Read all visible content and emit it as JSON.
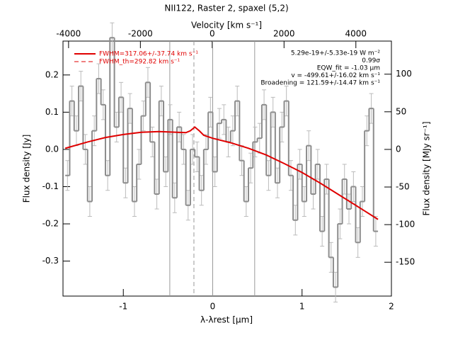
{
  "chart_data": {
    "type": "step",
    "title": "NII122, Raster 2, spaxel (5,2)",
    "xlabel": "λ-λrest [μm]",
    "ylabel": "Flux density [Jy]",
    "x2label": "Velocity [km s⁻¹]",
    "y2label": "Flux density [MJy sr⁻¹]",
    "xlim": [
      -1.675,
      2.0
    ],
    "xticks": [
      -1,
      0,
      1,
      2
    ],
    "ylim": [
      -0.394,
      0.291
    ],
    "yticks": [
      0.2,
      0.1,
      {
        "value": 0,
        "label": "0.0"
      },
      -0.1,
      -0.2,
      -0.3
    ],
    "x2lim": [
      -4155,
      4990
    ],
    "x2ticks": [
      -4000,
      -2000,
      0,
      2000,
      4000
    ],
    "y2lim": [
      -195,
      144
    ],
    "y2ticks": [
      100,
      50,
      0,
      -50,
      -100,
      -150
    ],
    "color": "#8c8c8c",
    "x": [
      -1.625,
      -1.575,
      -1.525,
      -1.475,
      -1.425,
      -1.375,
      -1.325,
      -1.275,
      -1.225,
      -1.175,
      -1.125,
      -1.075,
      -1.025,
      -0.975,
      -0.925,
      -0.875,
      -0.825,
      -0.775,
      -0.725,
      -0.675,
      -0.625,
      -0.575,
      -0.525,
      -0.475,
      -0.425,
      -0.375,
      -0.325,
      -0.275,
      -0.225,
      -0.175,
      -0.125,
      -0.075,
      -0.025,
      0.025,
      0.075,
      0.125,
      0.175,
      0.225,
      0.275,
      0.325,
      0.375,
      0.425,
      0.475,
      0.525,
      0.575,
      0.625,
      0.675,
      0.725,
      0.775,
      0.825,
      0.875,
      0.925,
      0.975,
      1.025,
      1.075,
      1.125,
      1.175,
      1.225,
      1.275,
      1.325,
      1.375,
      1.425,
      1.475,
      1.525,
      1.575,
      1.625,
      1.675,
      1.725,
      1.775,
      1.825
    ],
    "values": [
      -0.07,
      0.13,
      0.05,
      0.17,
      0.0,
      -0.14,
      0.05,
      0.19,
      0.12,
      -0.07,
      0.3,
      0.06,
      0.14,
      -0.09,
      0.11,
      -0.14,
      -0.04,
      0.09,
      0.18,
      0.02,
      -0.12,
      0.13,
      -0.06,
      0.08,
      -0.13,
      0.06,
      0.0,
      -0.15,
      0.0,
      -0.02,
      -0.11,
      0.0,
      0.1,
      -0.06,
      0.07,
      0.08,
      0.02,
      0.05,
      0.13,
      -0.03,
      -0.14,
      -0.05,
      0.02,
      0.03,
      0.12,
      -0.07,
      0.1,
      -0.09,
      0.06,
      0.13,
      -0.07,
      -0.19,
      -0.04,
      -0.14,
      0.01,
      -0.12,
      -0.04,
      -0.22,
      -0.08,
      -0.29,
      -0.37,
      -0.2,
      -0.08,
      -0.16,
      -0.1,
      -0.25,
      -0.14,
      0.05,
      0.11,
      -0.22
    ],
    "error": [
      0.04,
      0.04,
      0.04,
      0.04,
      0.04,
      0.04,
      0.04,
      0.04,
      0.04,
      0.04,
      0.04,
      0.04,
      0.04,
      0.04,
      0.04,
      0.04,
      0.04,
      0.04,
      0.04,
      0.04,
      0.04,
      0.04,
      0.04,
      0.04,
      0.04,
      0.04,
      0.04,
      0.04,
      0.04,
      0.04,
      0.04,
      0.04,
      0.04,
      0.04,
      0.04,
      0.04,
      0.04,
      0.04,
      0.04,
      0.04,
      0.04,
      0.04,
      0.04,
      0.04,
      0.04,
      0.04,
      0.04,
      0.04,
      0.04,
      0.04,
      0.04,
      0.04,
      0.04,
      0.04,
      0.04,
      0.04,
      0.04,
      0.04,
      0.04,
      0.04,
      0.04,
      0.04,
      0.04,
      0.04,
      0.04,
      0.04,
      0.04,
      0.04,
      0.04,
      0.04
    ],
    "fit": {
      "name": "FWHM=317.06+/-37.74 km s⁻¹",
      "color": "#e00000",
      "x": [
        -1.65,
        -1.4,
        -1.2,
        -1.0,
        -0.8,
        -0.6,
        -0.4,
        -0.3,
        -0.25,
        -0.2,
        -0.15,
        -0.1,
        0,
        0.2,
        0.4,
        0.6,
        0.8,
        1.0,
        1.2,
        1.4,
        1.6,
        1.85
      ],
      "values": [
        0.003,
        0.02,
        0.032,
        0.04,
        0.046,
        0.048,
        0.046,
        0.045,
        0.05,
        0.06,
        0.05,
        0.038,
        0.03,
        0.018,
        0.003,
        -0.015,
        -0.038,
        -0.062,
        -0.09,
        -0.12,
        -0.15,
        -0.188
      ]
    },
    "fwhm_th": {
      "name": "FWHM_th=292.82 km s⁻¹",
      "color": "#e00000"
    },
    "vlines": [
      -0.48,
      0,
      0.47
    ],
    "dashed_vline": -0.21,
    "annotations": [
      "5.29e-19+/-5.33e-19 W m⁻²",
      "0.99σ",
      "EQW_fit = -1.03 μm",
      "v = -499.61+/-16.02 km s⁻¹",
      "Broadening = 121.59+/-14.47 km s⁻¹"
    ]
  }
}
